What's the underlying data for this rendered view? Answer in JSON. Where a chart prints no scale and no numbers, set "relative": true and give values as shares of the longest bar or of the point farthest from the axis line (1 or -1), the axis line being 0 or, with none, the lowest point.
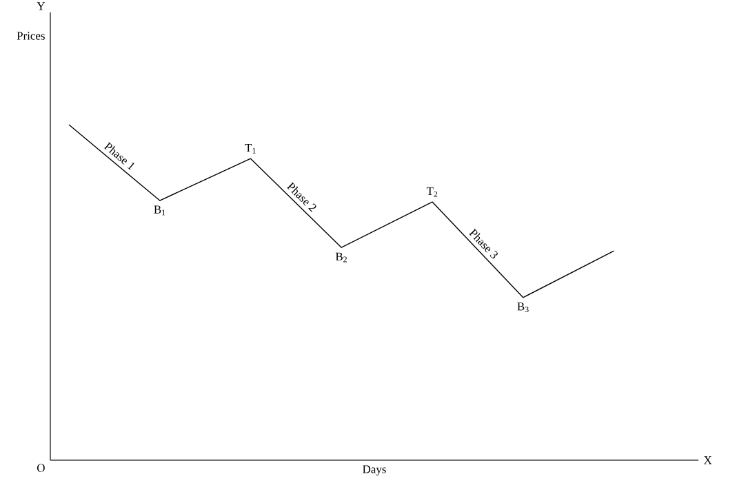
{
  "chart_data": {
    "type": "line",
    "relative": true,
    "xlabel": "Days",
    "color": "#000000",
    "categories": [
      null,
      null,
      null,
      null,
      null,
      null,
      null
    ],
    "values": [
      1,
      0.774,
      0.899,
      0.634,
      0.77,
      0.485,
      0.624
    ],
    "annotations": [
      "Y",
      "O",
      "X",
      "Phase 1",
      "T$_{1}$",
      "B$_{1}$",
      "Phase 2",
      "T$_{2}$",
      "B$_{2}$",
      "Phase 3",
      "B$_{3}$",
      "Prices"
    ]
  }
}
